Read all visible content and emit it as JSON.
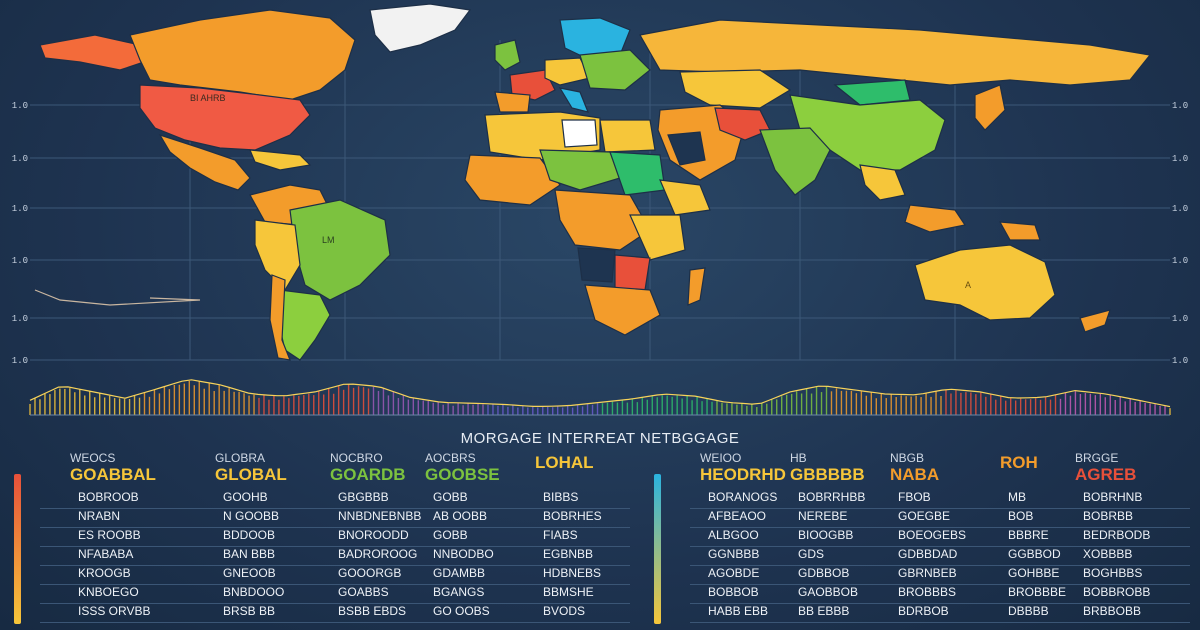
{
  "title": "MORGAGE INTERREAT NETBGGAGE",
  "colors": {
    "background": "#1f3450",
    "ocean": "#23405f",
    "orange": "#f39c2b",
    "yellow": "#f6c63a",
    "green": "#7cc23f",
    "red": "#e8503a",
    "blue": "#2ab3e0"
  },
  "map": {
    "grid": true,
    "left_ticks": [
      "1.0",
      "1.0",
      "1.0",
      "1.0",
      "1.0",
      "1.0"
    ],
    "right_ticks": [
      "1.0",
      "1.0",
      "1.0",
      "1.0",
      "1.0",
      "1.0"
    ],
    "region_labels": [
      "BI AHRB",
      "LM",
      "A"
    ]
  },
  "wave": {
    "levels": [
      0.35,
      0.7,
      0.55,
      0.4,
      0.62,
      0.85,
      0.72,
      0.5,
      0.45,
      0.55,
      0.75,
      0.68,
      0.42,
      0.3,
      0.28,
      0.25,
      0.2,
      0.22,
      0.3,
      0.38,
      0.5,
      0.45,
      0.3,
      0.25,
      0.55,
      0.7,
      0.6,
      0.5,
      0.48,
      0.62,
      0.55,
      0.4,
      0.42,
      0.58,
      0.5,
      0.35,
      0.2
    ]
  },
  "left_table": {
    "headers": [
      {
        "small": "WEOCS",
        "big": "GOABBAL",
        "color": "#f6c63a"
      },
      {
        "small": "GLOBRA",
        "big": "GLOBAL",
        "color": "#f6c63a"
      },
      {
        "small": "NOCBRO",
        "big": "GOARDB",
        "color": "#7cc23f"
      },
      {
        "small": "AOCBRS",
        "big": "GOOBSE",
        "color": "#7cc23f"
      },
      {
        "small": "",
        "big": "LOHAL",
        "color": "#f6c63a"
      }
    ],
    "rows": [
      [
        "BOBROOB",
        "GOOHB",
        "GBGBBB",
        "GOBB",
        "BIBBS"
      ],
      [
        "NRABN",
        "N GOOBB",
        "NNBDNEBNBB",
        "AB OOBB",
        "BOBRHES"
      ],
      [
        "ES ROOBB",
        "BDDOOB",
        "BNOROODD",
        "GOBB",
        "FIABS"
      ],
      [
        "NFABABA",
        "BAN BBB",
        "BADROROOG",
        "NNBODBO",
        "EGBNBB"
      ],
      [
        "KROOGB",
        "GNEOOB",
        "GOOORGB",
        "GDAMBB",
        "HDBNEBS"
      ],
      [
        "KNBOEGO",
        "BNBDOOO",
        "GOABBS",
        "BGANGS",
        "BBMSHE"
      ],
      [
        "ISSS ORVBB",
        "BRSB BB",
        "BSBB EBDS",
        "GO OOBS",
        "BVODS"
      ]
    ],
    "bar_color": "#e8503a"
  },
  "right_table": {
    "headers": [
      {
        "small": "WEIOO",
        "big": "HEODRHD",
        "color": "#f6c63a"
      },
      {
        "small": "HB",
        "big": "GBBBBB",
        "color": "#f6c63a"
      },
      {
        "small": "NBGB",
        "big": "NABA",
        "color": "#f39c2b"
      },
      {
        "small": "",
        "big": "ROH",
        "color": "#f39c2b"
      },
      {
        "small": "BRGGE",
        "big": "AGREB",
        "color": "#e8503a"
      }
    ],
    "rows": [
      [
        "BORANOGS",
        "BOBRRHBB",
        "FBOB",
        "MB",
        "BOBRHNB"
      ],
      [
        "AFBEAOO",
        "NEREBE",
        "GOEGBE",
        "BOB",
        "BOBRBB"
      ],
      [
        "ALBGOO",
        "BIOOGBB",
        "BOEOGEBS",
        "BBBRE",
        "BEDRBODB"
      ],
      [
        "GGNBBB",
        "GDS",
        "GDBBDAD",
        "GGBBOD",
        "XOBBBB"
      ],
      [
        "AGOBDE",
        "GDBBOB",
        "GBRNBEB",
        "GOHBBE",
        "BOGHBBS"
      ],
      [
        "BOBBOB",
        "GAOBBOB",
        "BROBBBS",
        "BROBBBE",
        "BOBBROBB"
      ],
      [
        "HABB EBB",
        "BB EBBB",
        "BDRBOB",
        "DBBBB",
        "BRBBOBB"
      ]
    ],
    "bar_color": "#2ab3e0"
  }
}
